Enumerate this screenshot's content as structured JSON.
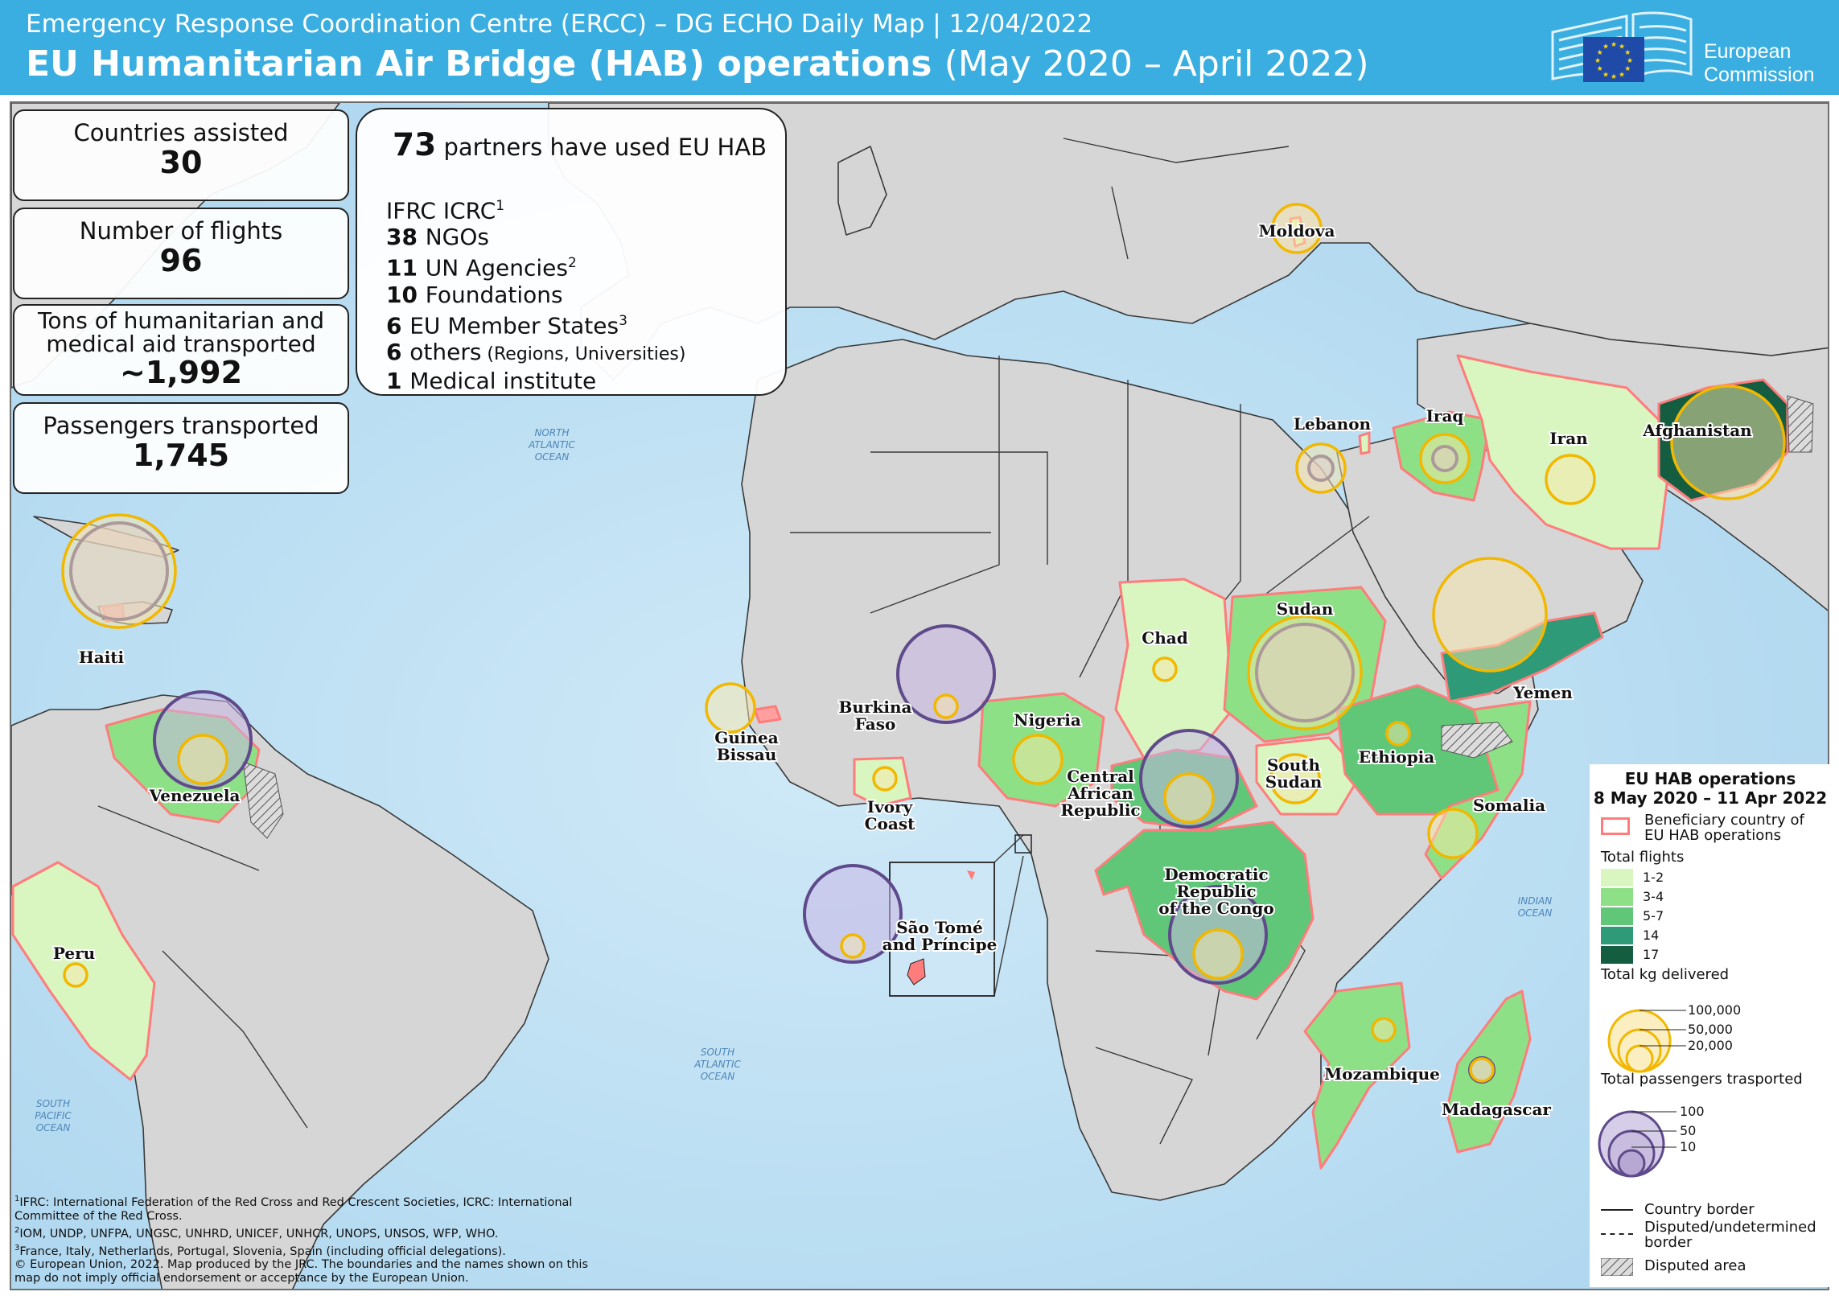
{
  "header": {
    "subtitle": "Emergency Response Coordination Centre (ERCC) – DG ECHO Daily Map | 12/04/2022",
    "title": "EU Humanitarian Air Bridge (HAB) operations",
    "period": "(May 2020 – April 2022)",
    "logo_text_line1": "European",
    "logo_text_line2": "Commission"
  },
  "stats": [
    {
      "label": "Countries assisted",
      "value": "30"
    },
    {
      "label": "Number of flights",
      "value": "96"
    },
    {
      "label": "Tons of humanitarian and medical aid transported",
      "value": "~1,992"
    },
    {
      "label": "Passengers transported",
      "value": "1,745"
    }
  ],
  "partners": {
    "count": "73",
    "headline": "partners have used EU HAB",
    "items": [
      {
        "num": "",
        "text": "IFRC ICRC",
        "sup": "1",
        "note": ""
      },
      {
        "num": "38",
        "text": "NGOs",
        "sup": "",
        "note": ""
      },
      {
        "num": "11",
        "text": "UN Agencies",
        "sup": "2",
        "note": ""
      },
      {
        "num": "10",
        "text": "Foundations",
        "sup": "",
        "note": ""
      },
      {
        "num": "6",
        "text": "EU Member States",
        "sup": "3",
        "note": ""
      },
      {
        "num": "6",
        "text": "others",
        "sup": "",
        "note": "(Regions, Universities)"
      },
      {
        "num": "1",
        "text": "Medical institute",
        "sup": "",
        "note": ""
      }
    ]
  },
  "countries": [
    {
      "label": [
        "Haiti"
      ],
      "flights_class": "",
      "kg_ring": "large",
      "pax_ring": "large"
    },
    {
      "label": [
        "Venezuela"
      ],
      "flights_class": "3-4",
      "kg_ring": "medium",
      "pax_ring": "large"
    },
    {
      "label": [
        "Peru"
      ],
      "flights_class": "1-2",
      "kg_ring": "small",
      "pax_ring": ""
    },
    {
      "label": [
        "Guinea",
        "Bissau"
      ],
      "flights_class": "",
      "kg_ring": "medium",
      "pax_ring": ""
    },
    {
      "label": [
        "Burkina",
        "Faso"
      ],
      "flights_class": "",
      "kg_ring": "small",
      "pax_ring": "large"
    },
    {
      "label": [
        "Ivory",
        "Coast"
      ],
      "flights_class": "1-2",
      "kg_ring": "small",
      "pax_ring": ""
    },
    {
      "label": [
        "Nigeria"
      ],
      "flights_class": "3-4",
      "kg_ring": "medium",
      "pax_ring": ""
    },
    {
      "label": [
        "Chad"
      ],
      "flights_class": "1-2",
      "kg_ring": "small",
      "pax_ring": ""
    },
    {
      "label": [
        "Central",
        "African",
        "Republic"
      ],
      "flights_class": "5-7",
      "kg_ring": "medium",
      "pax_ring": "large"
    },
    {
      "label": [
        "Sudan"
      ],
      "flights_class": "3-4",
      "kg_ring": "large",
      "pax_ring": "large"
    },
    {
      "label": [
        "South",
        "Sudan"
      ],
      "flights_class": "1-2",
      "kg_ring": "medium",
      "pax_ring": ""
    },
    {
      "label": [
        "Ethiopia"
      ],
      "flights_class": "5-7",
      "kg_ring": "small",
      "pax_ring": ""
    },
    {
      "label": [
        "Somalia"
      ],
      "flights_class": "3-4",
      "kg_ring": "medium",
      "pax_ring": ""
    },
    {
      "label": [
        "Yemen"
      ],
      "flights_class": "14",
      "kg_ring": "large",
      "pax_ring": ""
    },
    {
      "label": [
        "Afghanistan"
      ],
      "flights_class": "17",
      "kg_ring": "large",
      "pax_ring": ""
    },
    {
      "label": [
        "Iran"
      ],
      "flights_class": "1-2",
      "kg_ring": "medium",
      "pax_ring": ""
    },
    {
      "label": [
        "Iraq"
      ],
      "flights_class": "3-4",
      "kg_ring": "medium",
      "pax_ring": "small"
    },
    {
      "label": [
        "Lebanon"
      ],
      "flights_class": "",
      "kg_ring": "medium",
      "pax_ring": "small"
    },
    {
      "label": [
        "Moldova"
      ],
      "flights_class": "",
      "kg_ring": "medium",
      "pax_ring": ""
    },
    {
      "label": [
        "Democratic",
        "Republic",
        "of the Congo"
      ],
      "flights_class": "5-7",
      "kg_ring": "medium",
      "pax_ring": "large"
    },
    {
      "label": [
        "Mozambique"
      ],
      "flights_class": "3-4",
      "kg_ring": "small",
      "pax_ring": ""
    },
    {
      "label": [
        "Madagascar"
      ],
      "flights_class": "3-4",
      "kg_ring": "small",
      "pax_ring": "small"
    },
    {
      "label": [
        "São Tomé",
        "and Príncipe"
      ],
      "flights_class": "",
      "kg_ring": "small",
      "pax_ring": "large"
    }
  ],
  "oceans": [
    [
      "NORTH",
      "ATLANTIC",
      "OCEAN"
    ],
    [
      "SOUTH",
      "ATLANTIC",
      "OCEAN"
    ],
    [
      "SOUTH",
      "PACIFIC",
      "OCEAN"
    ],
    [
      "INDIAN",
      "OCEAN"
    ]
  ],
  "legend": {
    "title_line1": "EU HAB operations",
    "title_line2": "8 May 2020 – 11 Apr 2022",
    "beneficiary_line1": "Beneficiary country of",
    "beneficiary_line2": "EU HAB operations",
    "flights_title": "Total flights",
    "flight_classes": [
      {
        "label": "1-2",
        "color": "#d9f5c0"
      },
      {
        "label": "3-4",
        "color": "#8ee086"
      },
      {
        "label": "5-7",
        "color": "#5fc777"
      },
      {
        "label": "14",
        "color": "#2e9a78"
      },
      {
        "label": "17",
        "color": "#155d41"
      }
    ],
    "kg_title": "Total kg delivered",
    "kg_values": [
      "100,000",
      "50,000",
      "20,000"
    ],
    "pax_title": "Total passengers trasported",
    "pax_values": [
      "100",
      "50",
      "10"
    ],
    "country_border": "Country border",
    "disputed_border_line1": "Disputed/undetermined",
    "disputed_border_line2": "border",
    "disputed_area": "Disputed area"
  },
  "colors": {
    "header": "#3aaee0",
    "ocean": "#bfe0f2",
    "land": "#d6d6d6",
    "beneficiary_border": "#ff7c7c",
    "kg_ring": "#f2b800",
    "pax_ring": "#5f4a8b"
  },
  "footnotes": [
    {
      "sup": "1",
      "text": "IFRC: International Federation of the Red Cross and Red Crescent Societies, ICRC: International Committee of the Red Cross."
    },
    {
      "sup": "2",
      "text": "IOM, UNDP, UNFPA, UNGSC, UNHRD, UNICEF, UNHCR, UNOPS, UNSOS, WFP, WHO."
    },
    {
      "sup": "3",
      "text": "France, Italy, Netherlands, Portugal, Slovenia, Spain (including official delegations)."
    },
    {
      "sup": "",
      "text": "© European Union, 2022. Map produced by the JRC. The boundaries and the names shown on this map do not imply official endorsement or acceptance by the European Union."
    }
  ]
}
